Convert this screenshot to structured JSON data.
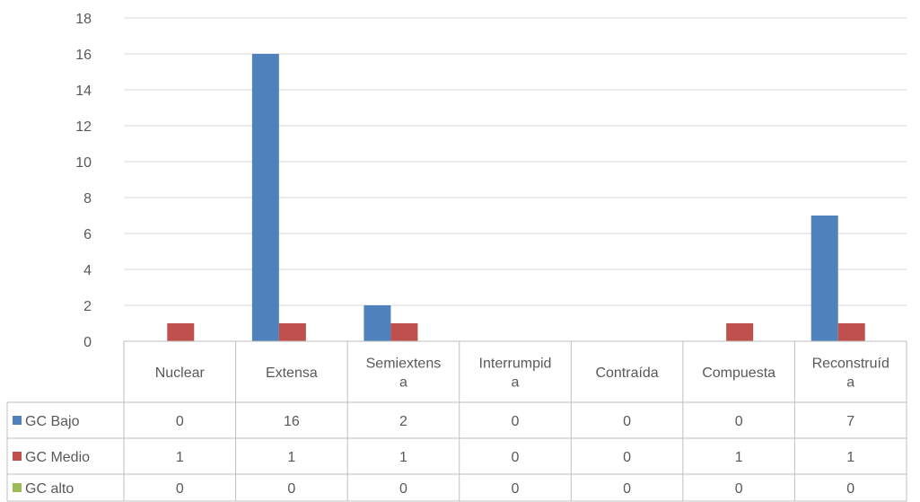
{
  "chart_data": {
    "type": "bar",
    "categories": [
      "Nuclear",
      "Extensa",
      "Semiextensa",
      "Interrumpida",
      "Contraída",
      "Compuesta",
      "Reconstruída"
    ],
    "category_lines": [
      [
        "Nuclear"
      ],
      [
        "Extensa"
      ],
      [
        "Semiextens",
        "a"
      ],
      [
        "Interrumpid",
        "a"
      ],
      [
        "Contraída"
      ],
      [
        "Compuesta"
      ],
      [
        "Reconstruíd",
        "a"
      ]
    ],
    "series": [
      {
        "name": "GC Bajo",
        "values": [
          0,
          16,
          2,
          0,
          0,
          0,
          7
        ],
        "color": "#4f81bd"
      },
      {
        "name": "GC Medio",
        "values": [
          1,
          1,
          1,
          0,
          0,
          1,
          1
        ],
        "color": "#c0504d"
      },
      {
        "name": "GC alto",
        "values": [
          0,
          0,
          0,
          0,
          0,
          0,
          0
        ],
        "color": "#9bbb59"
      }
    ],
    "ylim": [
      0,
      18
    ],
    "yticks": [
      0,
      2,
      4,
      6,
      8,
      10,
      12,
      14,
      16,
      18
    ],
    "grid": true,
    "legend": "data-table",
    "xlabel": "",
    "ylabel": "",
    "title": ""
  }
}
